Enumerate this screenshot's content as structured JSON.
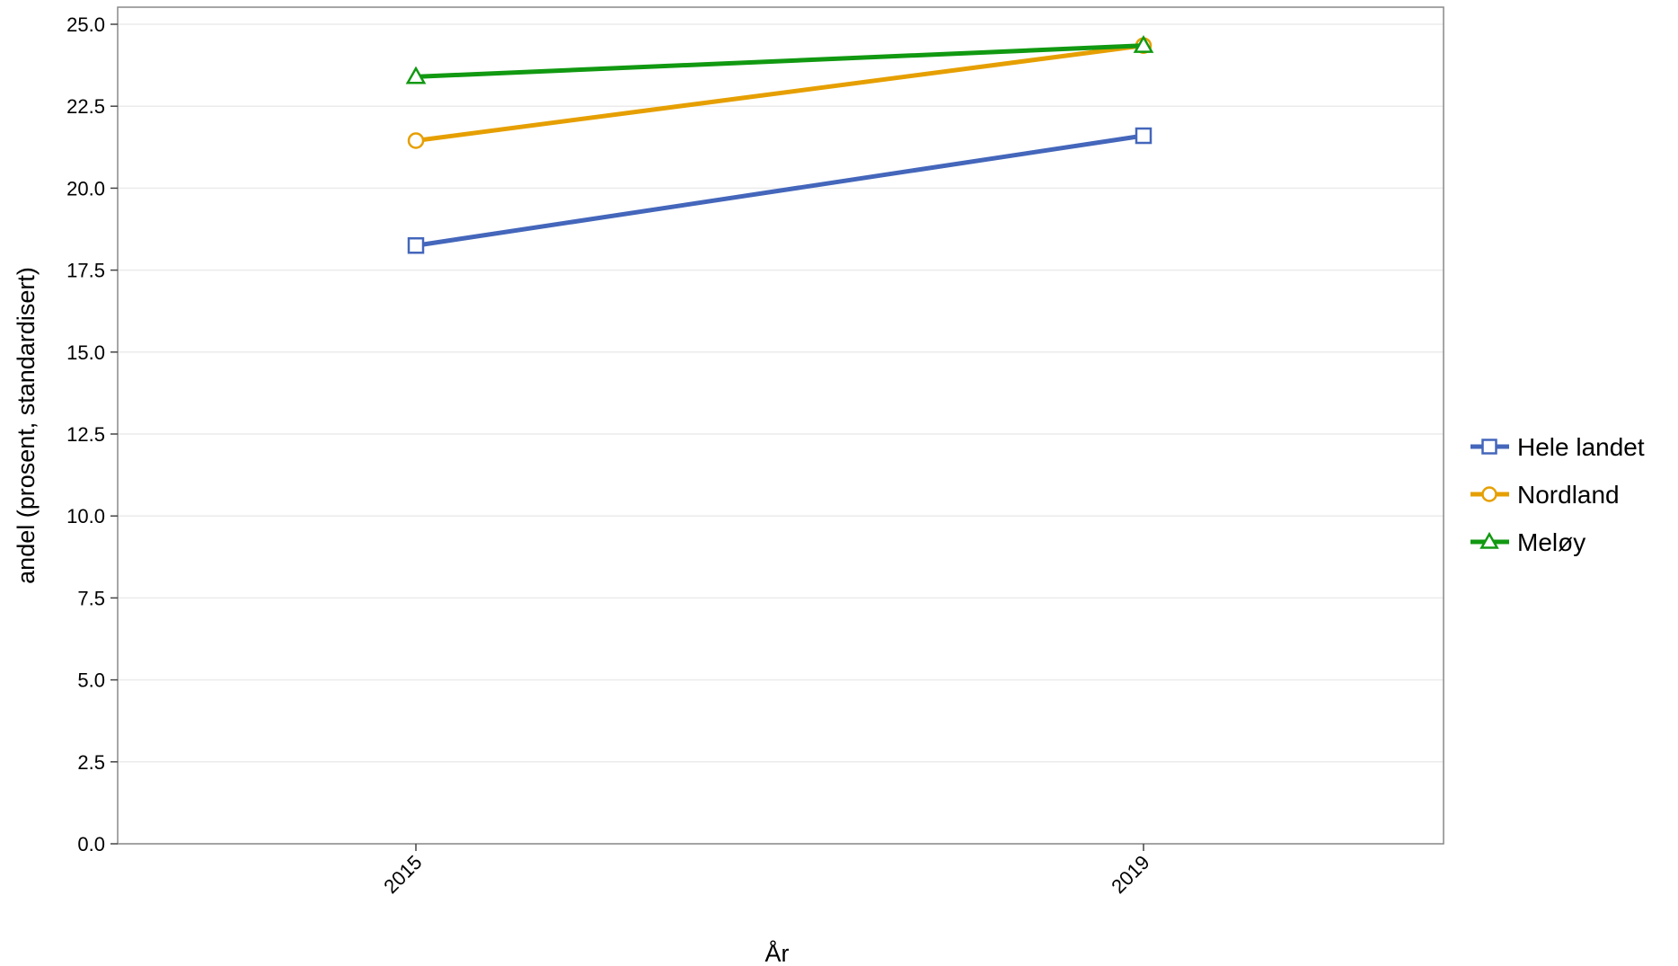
{
  "chart_data": {
    "type": "line",
    "title": "",
    "xlabel": "År",
    "ylabel": "andel (prosent, standardisert)",
    "x": [
      "2015",
      "2019"
    ],
    "ylim": [
      0,
      25
    ],
    "yticks": [
      "0.0",
      "2.5",
      "5.0",
      "7.5",
      "10.0",
      "12.5",
      "15.0",
      "17.5",
      "20.0",
      "22.5",
      "25.0"
    ],
    "grid": "horizontal",
    "legend_position": "right",
    "series": [
      {
        "name": "Hele landet",
        "values": [
          18.25,
          21.6
        ],
        "color": "#4466bb",
        "marker": "square"
      },
      {
        "name": "Nordland",
        "values": [
          21.45,
          24.35
        ],
        "color": "#e69f00",
        "marker": "circle"
      },
      {
        "name": "Meløy",
        "values": [
          23.4,
          24.35
        ],
        "color": "#119911",
        "marker": "triangle"
      }
    ]
  }
}
